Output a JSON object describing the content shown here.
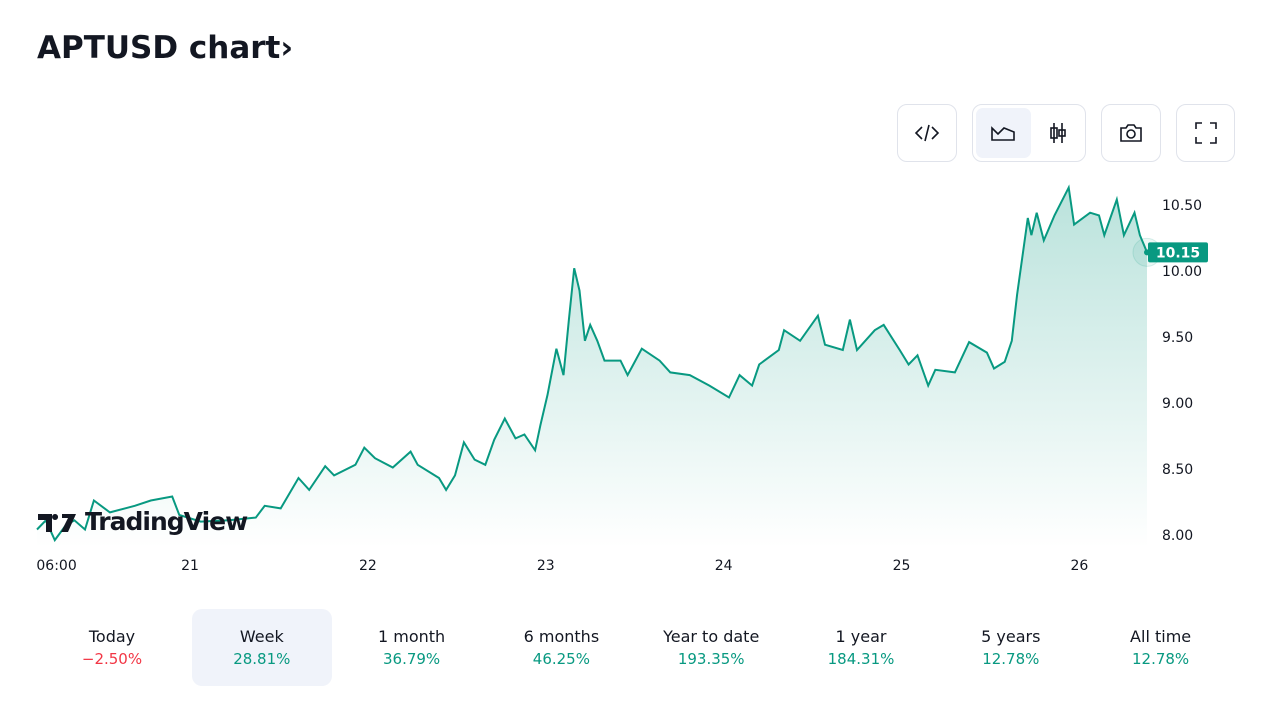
{
  "title": "APTUSD chart›",
  "chart_data": {
    "type": "area",
    "color": "#089981",
    "watermark": "TradingView",
    "x": [
      20.14,
      20.19,
      20.24,
      20.3,
      20.35,
      20.41,
      20.46,
      20.55,
      20.69,
      20.78,
      20.9,
      20.94,
      21.06,
      21.22,
      21.37,
      21.42,
      21.51,
      21.61,
      21.67,
      21.76,
      21.81,
      21.93,
      21.98,
      22.04,
      22.14,
      22.24,
      22.28,
      22.4,
      22.44,
      22.49,
      22.54,
      22.6,
      22.66,
      22.71,
      22.77,
      22.83,
      22.88,
      22.94,
      22.97,
      23.01,
      23.06,
      23.1,
      23.13,
      23.16,
      23.19,
      23.22,
      23.25,
      23.29,
      23.33,
      23.42,
      23.46,
      23.54,
      23.64,
      23.7,
      23.81,
      23.92,
      24.03,
      24.09,
      24.16,
      24.2,
      24.31,
      24.34,
      24.43,
      24.53,
      24.57,
      24.67,
      24.71,
      24.75,
      24.85,
      24.9,
      24.99,
      25.04,
      25.09,
      25.15,
      25.19,
      25.3,
      25.38,
      25.48,
      25.52,
      25.58,
      25.62,
      25.65,
      25.71,
      25.73,
      25.76,
      25.8,
      25.86,
      25.94,
      25.97,
      26.06,
      26.11,
      26.14,
      26.21,
      26.25,
      26.31,
      26.34,
      26.38
    ],
    "values": [
      8.05,
      8.12,
      7.97,
      8.08,
      8.12,
      8.05,
      8.27,
      8.18,
      8.23,
      8.27,
      8.3,
      8.16,
      8.11,
      8.12,
      8.14,
      8.23,
      8.21,
      8.44,
      8.35,
      8.53,
      8.46,
      8.54,
      8.67,
      8.59,
      8.52,
      8.64,
      8.54,
      8.44,
      8.35,
      8.46,
      8.71,
      8.58,
      8.54,
      8.73,
      8.89,
      8.74,
      8.77,
      8.65,
      8.84,
      9.07,
      9.42,
      9.22,
      9.64,
      10.03,
      9.86,
      9.48,
      9.6,
      9.48,
      9.33,
      9.33,
      9.22,
      9.42,
      9.33,
      9.24,
      9.22,
      9.14,
      9.05,
      9.22,
      9.14,
      9.3,
      9.41,
      9.56,
      9.48,
      9.67,
      9.45,
      9.41,
      9.64,
      9.41,
      9.56,
      9.6,
      9.41,
      9.3,
      9.37,
      9.14,
      9.26,
      9.24,
      9.47,
      9.39,
      9.27,
      9.32,
      9.48,
      9.83,
      10.41,
      10.28,
      10.45,
      10.24,
      10.43,
      10.64,
      10.36,
      10.45,
      10.43,
      10.28,
      10.55,
      10.28,
      10.45,
      10.28,
      10.15
    ],
    "xlim": [
      20.14,
      26.38
    ],
    "xticks": [
      {
        "value": 20.25,
        "label": "06:00"
      },
      21,
      22,
      23,
      24,
      25,
      26
    ],
    "ylim": [
      7.91,
      10.66
    ],
    "yticks": [
      {
        "value": 8,
        "label": "8.00"
      },
      {
        "value": 8.5,
        "label": "8.50"
      },
      {
        "value": 9,
        "label": "9.00"
      },
      {
        "value": 9.5,
        "label": "9.50"
      },
      {
        "value": 10,
        "label": "10.00"
      },
      {
        "value": 10.5,
        "label": "10.50"
      }
    ]
  },
  "periods": [
    {
      "label": "Today",
      "change": "−2.50%",
      "color": "#f23645"
    },
    {
      "label": "Week",
      "change": "28.81%",
      "color": "#089981"
    },
    {
      "label": "1 month",
      "change": "36.79%",
      "color": "#089981"
    },
    {
      "label": "6 months",
      "change": "46.25%",
      "color": "#089981"
    },
    {
      "label": "Year to date",
      "change": "193.35%",
      "color": "#089981"
    },
    {
      "label": "1 year",
      "change": "184.31%",
      "color": "#089981"
    },
    {
      "label": "5 years",
      "change": "12.78%",
      "color": "#089981"
    },
    {
      "label": "All time",
      "change": "12.78%",
      "color": "#089981"
    }
  ],
  "selected_period": 1
}
